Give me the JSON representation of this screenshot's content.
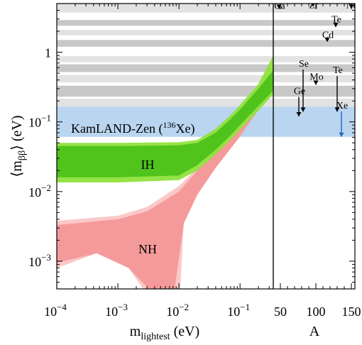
{
  "chart_data": [
    {
      "type": "area",
      "xlabel": "m_lightest (eV)",
      "ylabel": "⟨m_ββ⟩ (eV)",
      "xscale": "log",
      "yscale": "log",
      "xlim": [
        0.0001,
        0.35
      ],
      "ylim": [
        0.0004,
        5
      ],
      "x_ticks": [
        "10^-4",
        "10^-3",
        "10^-2",
        "10^-1"
      ],
      "y_ticks": [
        "10^-3",
        "10^-2",
        "10^-1",
        "1"
      ],
      "grid": false,
      "legend": "none",
      "colors": {
        "nh_outer": "#fbc8c8",
        "nh_inner": "#f59a9a",
        "ih_outer": "#8fe13c",
        "ih_inner": "#4cc11b",
        "kamland": "#b9d5ef",
        "gray_dark": "#c8c8c8",
        "gray_light": "#e2e2e2"
      },
      "annotations": {
        "nh": "NH",
        "ih": "IH",
        "kamland_prefix": "KamLAND-Zen (",
        "kamland_mass": "136",
        "kamland_element": "Xe",
        "kamland_suffix": ")"
      },
      "bands": {
        "kamland_zen": {
          "range": [
            0.061,
            0.165
          ]
        },
        "gray_stripes": [
          [
            0.13,
            0.165
          ],
          [
            0.165,
            0.215
          ],
          [
            0.23,
            0.33
          ],
          [
            0.37,
            0.47
          ],
          [
            0.52,
            0.67
          ],
          [
            0.72,
            0.88
          ],
          [
            1.2,
            1.5
          ],
          [
            1.75,
            2.1
          ],
          [
            2.4,
            2.9
          ],
          [
            3.7,
            5.0
          ]
        ]
      },
      "series": [
        {
          "name": "IH",
          "outer": {
            "x": [
              0.0001,
              0.001,
              0.01,
              0.02,
              0.04,
              0.07,
              0.1,
              0.2,
              0.35
            ],
            "lower": [
              0.0135,
              0.0135,
              0.0146,
              0.02,
              0.034,
              0.055,
              0.077,
              0.145,
              0.25
            ],
            "upper": [
              0.05,
              0.05,
              0.051,
              0.055,
              0.08,
              0.125,
              0.175,
              0.35,
              0.9
            ]
          },
          "inner": {
            "x": [
              0.0001,
              0.001,
              0.01,
              0.02,
              0.04,
              0.07,
              0.1,
              0.2,
              0.35
            ],
            "lower": [
              0.016,
              0.016,
              0.017,
              0.024,
              0.04,
              0.064,
              0.09,
              0.17,
              0.28
            ],
            "upper": [
              0.045,
              0.045,
              0.046,
              0.05,
              0.07,
              0.11,
              0.15,
              0.3,
              0.55
            ]
          }
        },
        {
          "name": "NH",
          "outer": {
            "x": [
              0.0001,
              0.001,
              0.003,
              0.01,
              0.02,
              0.04,
              0.07,
              0.1,
              0.2,
              0.35
            ],
            "upper": [
              0.0038,
              0.0045,
              0.006,
              0.012,
              0.022,
              0.042,
              0.075,
              0.1,
              0.22,
              0.45
            ]
          },
          "inner": {
            "x": [
              0.0001,
              0.001,
              0.003,
              0.01,
              0.02,
              0.04,
              0.07,
              0.1,
              0.2,
              0.35
            ],
            "upper": [
              0.0033,
              0.004,
              0.0052,
              0.01,
              0.02,
              0.04,
              0.07,
              0.095,
              0.21,
              0.42
            ]
          }
        }
      ]
    },
    {
      "type": "scatter",
      "xlabel": "A",
      "xlim": [
        40,
        155
      ],
      "x_ticks": [
        "50",
        "100",
        "150"
      ],
      "isotopes": [
        {
          "label": "Ca",
          "A": 48,
          "limit": 4.2
        },
        {
          "label": "Zr",
          "A": 96,
          "limit": 4.5
        },
        {
          "label": "Nd",
          "A": 150,
          "limit": 4.2
        },
        {
          "label": "Te",
          "A": 128,
          "limit": 2.3
        },
        {
          "label": "Cd",
          "A": 116,
          "limit": 1.4
        },
        {
          "label": "Se",
          "A": 82,
          "limit": 0.14
        },
        {
          "label": "Mo",
          "A": 100,
          "limit": 0.34
        },
        {
          "label": "Ge",
          "A": 76,
          "limit": 0.12
        },
        {
          "label": "Te",
          "A": 130,
          "limit": 0.14
        },
        {
          "label": "Xe",
          "A": 136,
          "limit": 0.061,
          "color": "#2266bb"
        }
      ]
    }
  ]
}
